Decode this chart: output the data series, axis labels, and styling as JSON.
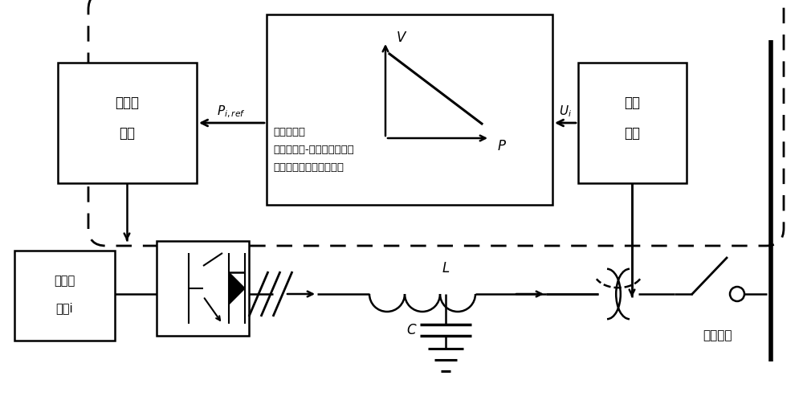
{
  "fig_width": 10.0,
  "fig_height": 4.93,
  "dpi": 100,
  "labels": {
    "dual_loop_line1": "双闭环",
    "dual_loop_line2": "控制",
    "voltage_meas_line1": "电压",
    "voltage_meas_line2": "测量",
    "storage_line1": "分布式",
    "storage_line2": "储能i",
    "droop_title": "下垂系数：",
    "droop_line1": "初值：有功-电压灵敏度矩阵",
    "droop_line2": "调整：电压预测闭环模型",
    "V_label": "$V$",
    "P_label": "$P$",
    "Pi_ref": "$P_{i,ref}$",
    "Ui": "$U_i$",
    "L_label": "$L$",
    "C_label": "$C$",
    "ac_bus": "交流母线"
  }
}
